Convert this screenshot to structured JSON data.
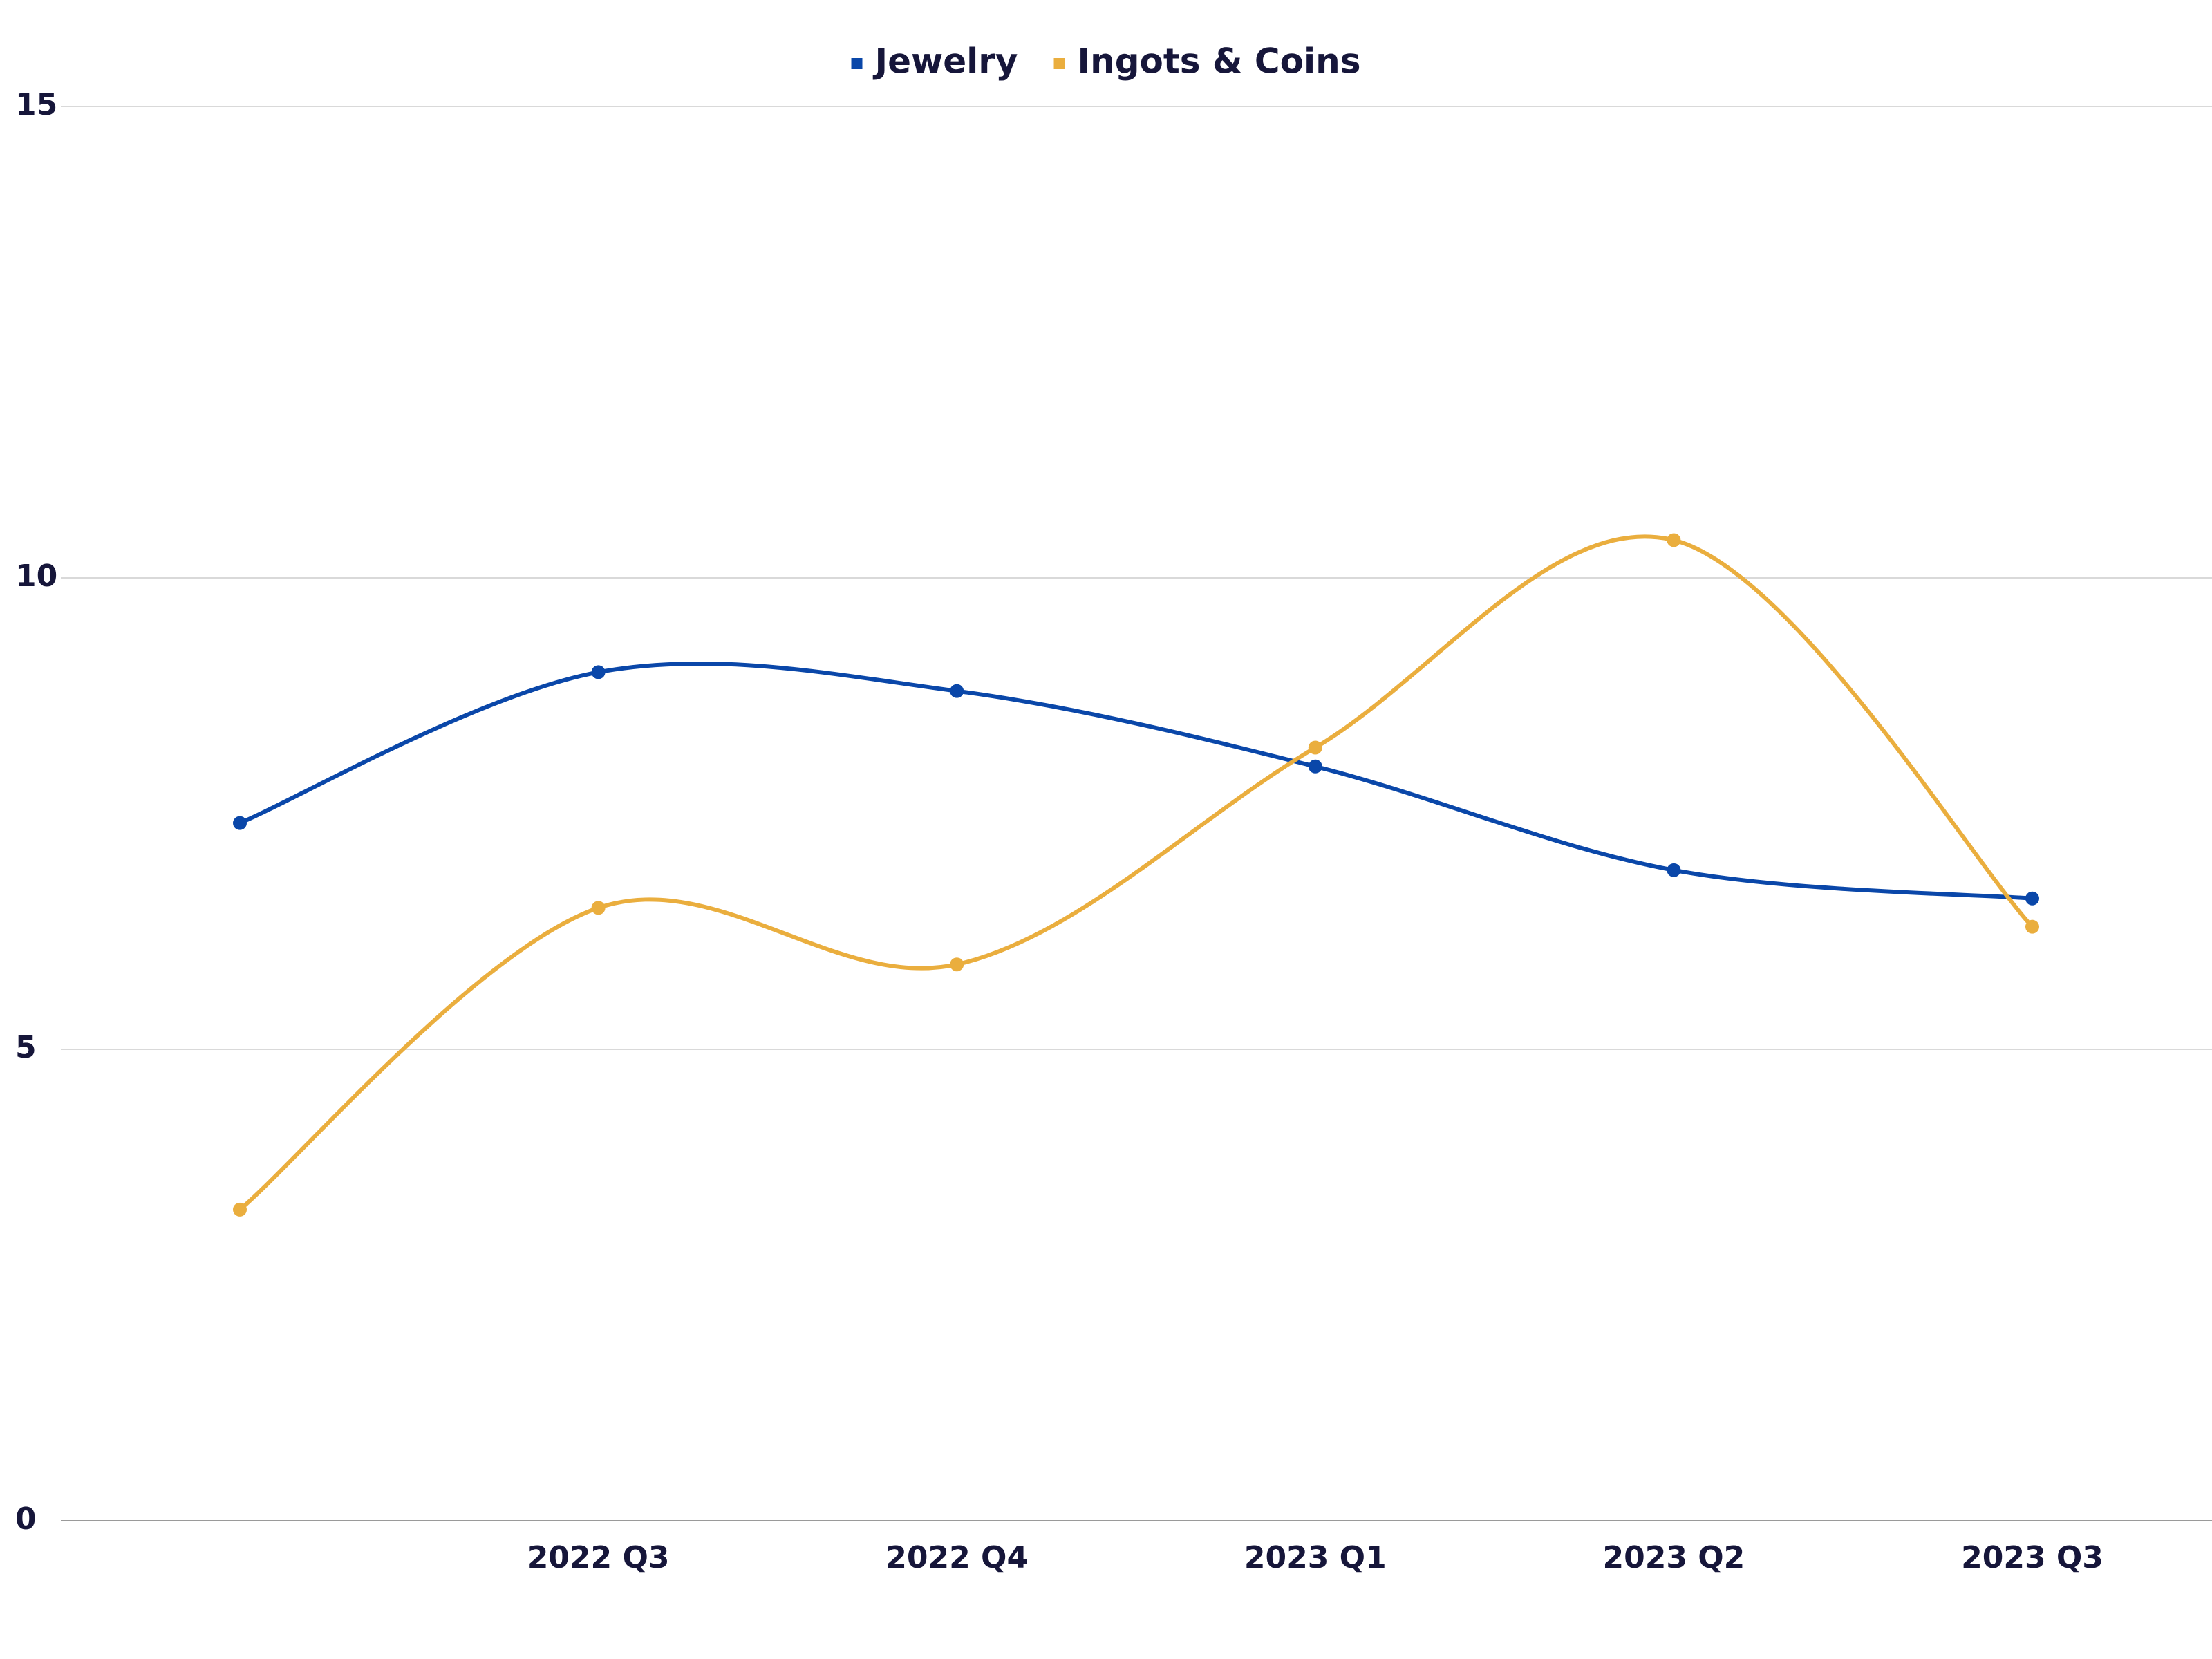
{
  "chart_data": {
    "type": "line",
    "title": "",
    "xlabel": "",
    "ylabel": "",
    "categories": [
      "",
      "2022 Q3",
      "2022 Q4",
      "2023 Q1",
      "2023 Q2",
      "2023 Q3"
    ],
    "ylim": [
      0,
      15
    ],
    "yticks": [
      0,
      5,
      10,
      15
    ],
    "grid": true,
    "smooth": true,
    "legend_position": "top-center",
    "series": [
      {
        "name": "Jewelry",
        "color": "#0a47a9",
        "values": [
          7.4,
          9.0,
          8.8,
          8.0,
          6.9,
          6.6
        ]
      },
      {
        "name": "Ingots & Coins",
        "color": "#eaae3e",
        "values": [
          3.3,
          6.5,
          5.9,
          8.2,
          10.4,
          6.3
        ]
      }
    ]
  }
}
